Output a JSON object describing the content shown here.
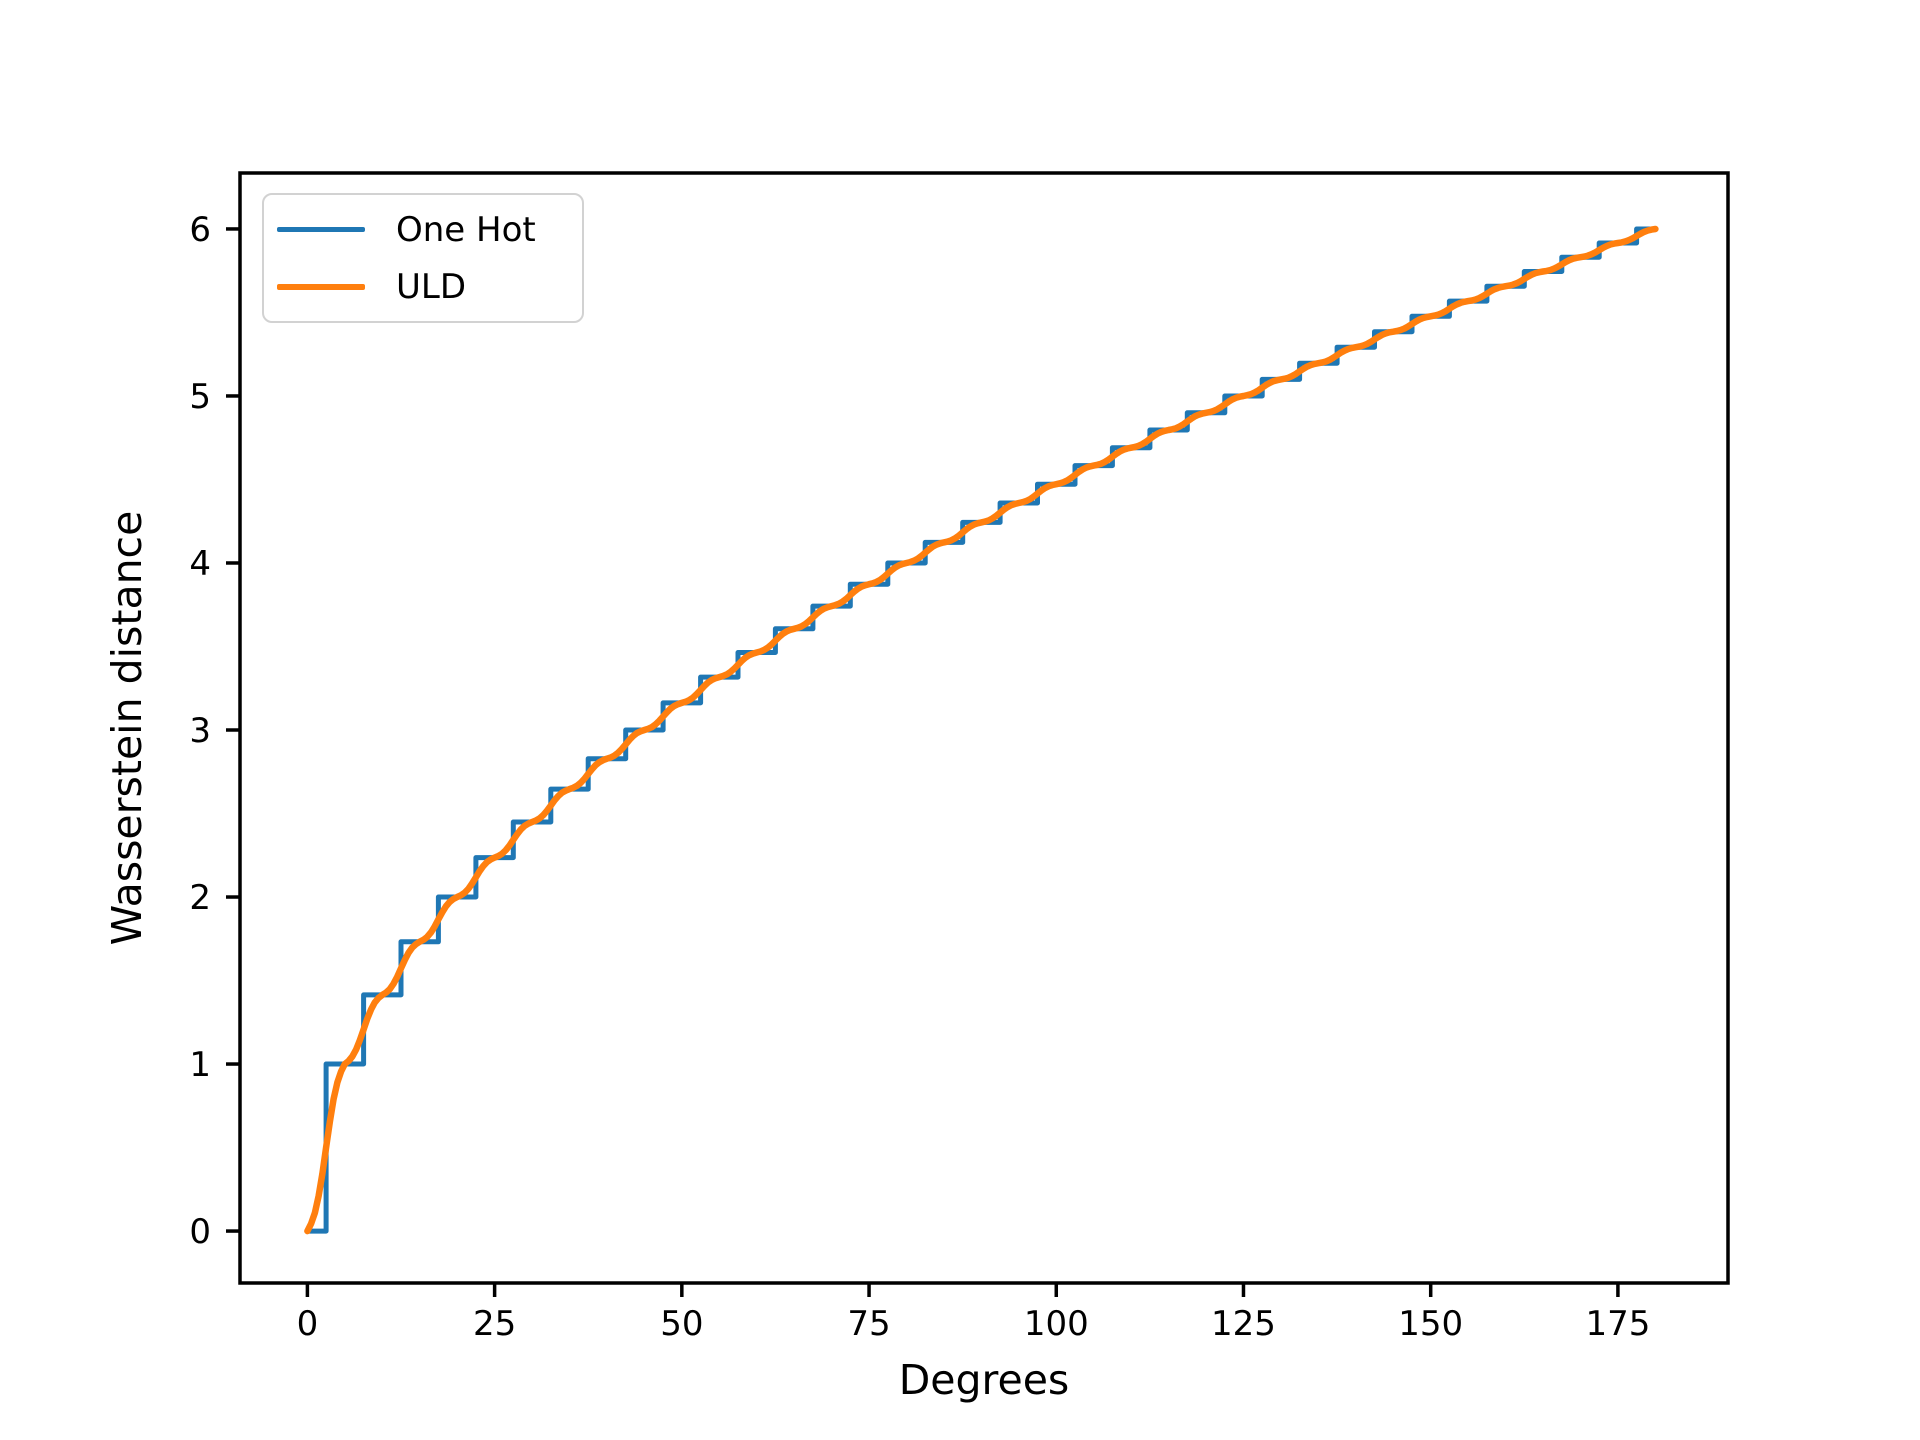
{
  "axes": {
    "xlabel": "Degrees",
    "ylabel": "Wasserstein distance"
  },
  "legend": {
    "position": "upper left",
    "items": [
      {
        "label": "One Hot",
        "color": "#1f77b4"
      },
      {
        "label": "ULD",
        "color": "#ff7f0e"
      }
    ]
  },
  "chart_data": {
    "type": "line",
    "title": "",
    "xlabel": "Degrees",
    "ylabel": "Wasserstein distance",
    "grid": false,
    "legend_position": "upper left",
    "xlim": [
      -9.0,
      189.7
    ],
    "ylim": [
      -0.311,
      6.335
    ],
    "x_ticks": [
      0,
      25,
      50,
      75,
      100,
      125,
      150,
      175
    ],
    "x_tick_labels": [
      "0",
      "25",
      "50",
      "75",
      "100",
      "125",
      "150",
      "175"
    ],
    "y_ticks": [
      0,
      1,
      2,
      3,
      4,
      5,
      6
    ],
    "y_tick_labels": [
      "0",
      "1",
      "2",
      "3",
      "4",
      "5",
      "6"
    ],
    "x": [
      0,
      5,
      10,
      15,
      20,
      25,
      30,
      35,
      40,
      45,
      50,
      55,
      60,
      65,
      70,
      75,
      80,
      85,
      90,
      95,
      100,
      105,
      110,
      115,
      120,
      125,
      130,
      135,
      140,
      145,
      150,
      155,
      160,
      165,
      170,
      175,
      180
    ],
    "series": [
      {
        "name": "One Hot",
        "color": "#1f77b4",
        "line_style": "step",
        "step_note": "plateau value sqrt(k) holds on [5k-2.5, 5k+2.5], transitions at 2.5+5k degrees",
        "values": [
          0,
          1,
          1.414,
          1.732,
          2,
          2.236,
          2.449,
          2.646,
          2.828,
          3,
          3.162,
          3.317,
          3.464,
          3.606,
          3.742,
          3.873,
          4,
          4.123,
          4.243,
          4.359,
          4.472,
          4.583,
          4.69,
          4.796,
          4.899,
          5,
          5.099,
          5.196,
          5.292,
          5.385,
          5.477,
          5.568,
          5.657,
          5.745,
          5.831,
          5.916,
          6
        ],
        "line_width": 5
      },
      {
        "name": "ULD",
        "color": "#ff7f0e",
        "line_style": "smooth",
        "ease_amplitude": 0.6,
        "values": [
          0,
          1,
          1.414,
          1.732,
          2,
          2.236,
          2.449,
          2.646,
          2.828,
          3,
          3.162,
          3.317,
          3.464,
          3.606,
          3.742,
          3.873,
          4,
          4.123,
          4.243,
          4.359,
          4.472,
          4.583,
          4.69,
          4.796,
          4.899,
          5,
          5.099,
          5.196,
          5.292,
          5.385,
          5.477,
          5.568,
          5.657,
          5.745,
          5.831,
          5.916,
          6
        ],
        "line_width": 6.5
      }
    ]
  }
}
